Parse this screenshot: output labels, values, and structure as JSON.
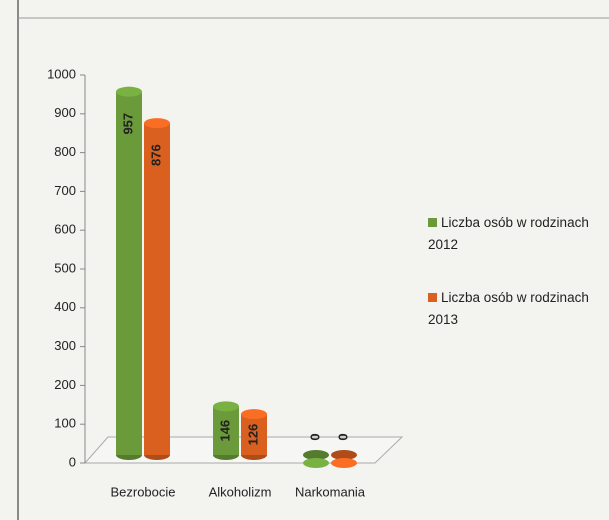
{
  "chart_data": {
    "type": "bar",
    "categories": [
      "Bezrobocie",
      "Alkoholizm",
      "Narkomania"
    ],
    "series": [
      {
        "name": "Liczba osób w rodzinach 2012",
        "color": "#6a9a3a",
        "values": [
          957,
          146,
          0
        ]
      },
      {
        "name": "Liczba osób w rodzinach 2013",
        "color": "#d9601f",
        "values": [
          876,
          126,
          0
        ]
      }
    ],
    "ylim": [
      0,
      1000
    ],
    "yticks": [
      0,
      100,
      200,
      300,
      400,
      500,
      600,
      700,
      800,
      900,
      1000
    ],
    "legend": "right"
  }
}
